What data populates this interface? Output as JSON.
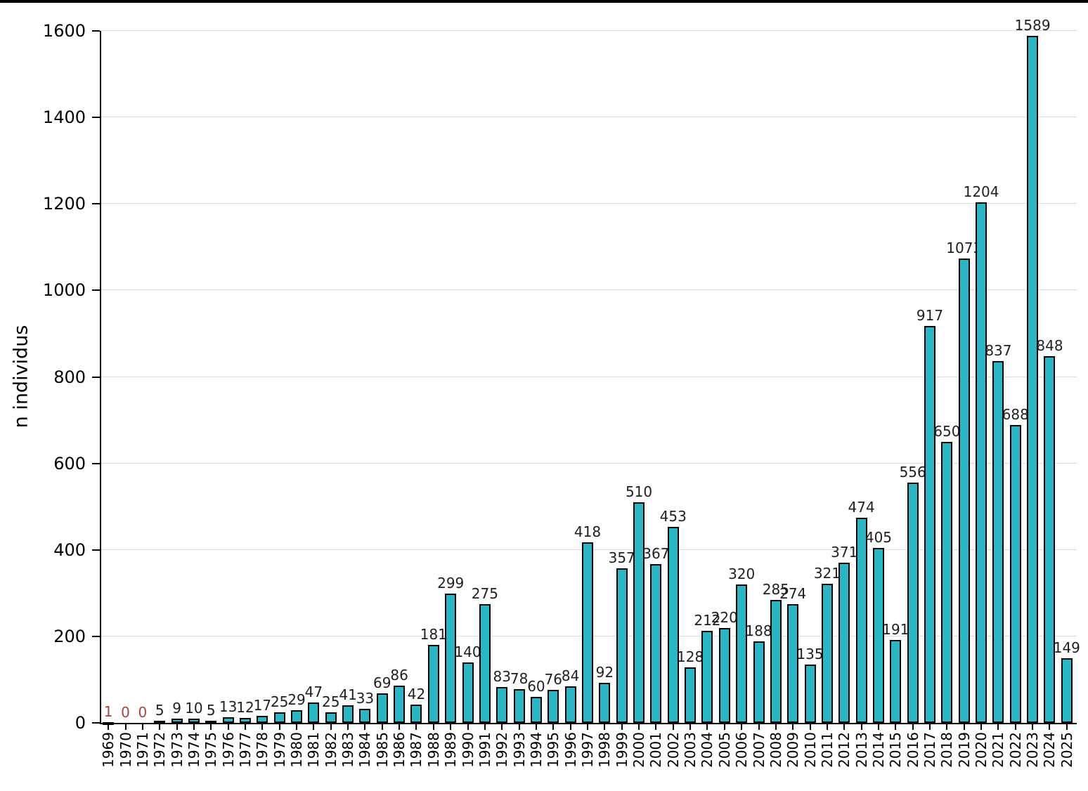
{
  "chart_data": {
    "type": "bar",
    "title": "",
    "xlabel": "",
    "ylabel": "n individus",
    "ylim": [
      0,
      1600
    ],
    "yticks": [
      0,
      200,
      400,
      600,
      800,
      1000,
      1200,
      1400,
      1600
    ],
    "grid": true,
    "legend": "none",
    "bar_color": "#29b7c6",
    "bar_border_color": "#000000",
    "value_label_color": "#1f1f1f",
    "red_value_label_color": "#aa4444",
    "red_label_indices": [
      0,
      1,
      2
    ],
    "categories": [
      "1969",
      "1970",
      "1971",
      "1972",
      "1973",
      "1974",
      "1975",
      "1976",
      "1977",
      "1978",
      "1979",
      "1980",
      "1981",
      "1982",
      "1983",
      "1984",
      "1985",
      "1986",
      "1987",
      "1988",
      "1989",
      "1990",
      "1991",
      "1992",
      "1993",
      "1994",
      "1995",
      "1996",
      "1997",
      "1998",
      "1999",
      "2000",
      "2001",
      "2002",
      "2003",
      "2004",
      "2005",
      "2006",
      "2007",
      "2008",
      "2009",
      "2010",
      "2011",
      "2012",
      "2013",
      "2014",
      "2015",
      "2016",
      "2017",
      "2018",
      "2019",
      "2020",
      "2021",
      "2022",
      "2023",
      "2024",
      "2025"
    ],
    "values": [
      1,
      0,
      0,
      5,
      9,
      10,
      5,
      13,
      12,
      17,
      25,
      29,
      47,
      25,
      41,
      33,
      69,
      86,
      42,
      181,
      299,
      140,
      275,
      83,
      78,
      60,
      76,
      84,
      418,
      92,
      357,
      510,
      367,
      453,
      128,
      212,
      220,
      320,
      188,
      285,
      274,
      135,
      321,
      371,
      474,
      405,
      191,
      556,
      917,
      650,
      1073,
      1204,
      837,
      688,
      1589,
      848,
      149
    ]
  }
}
